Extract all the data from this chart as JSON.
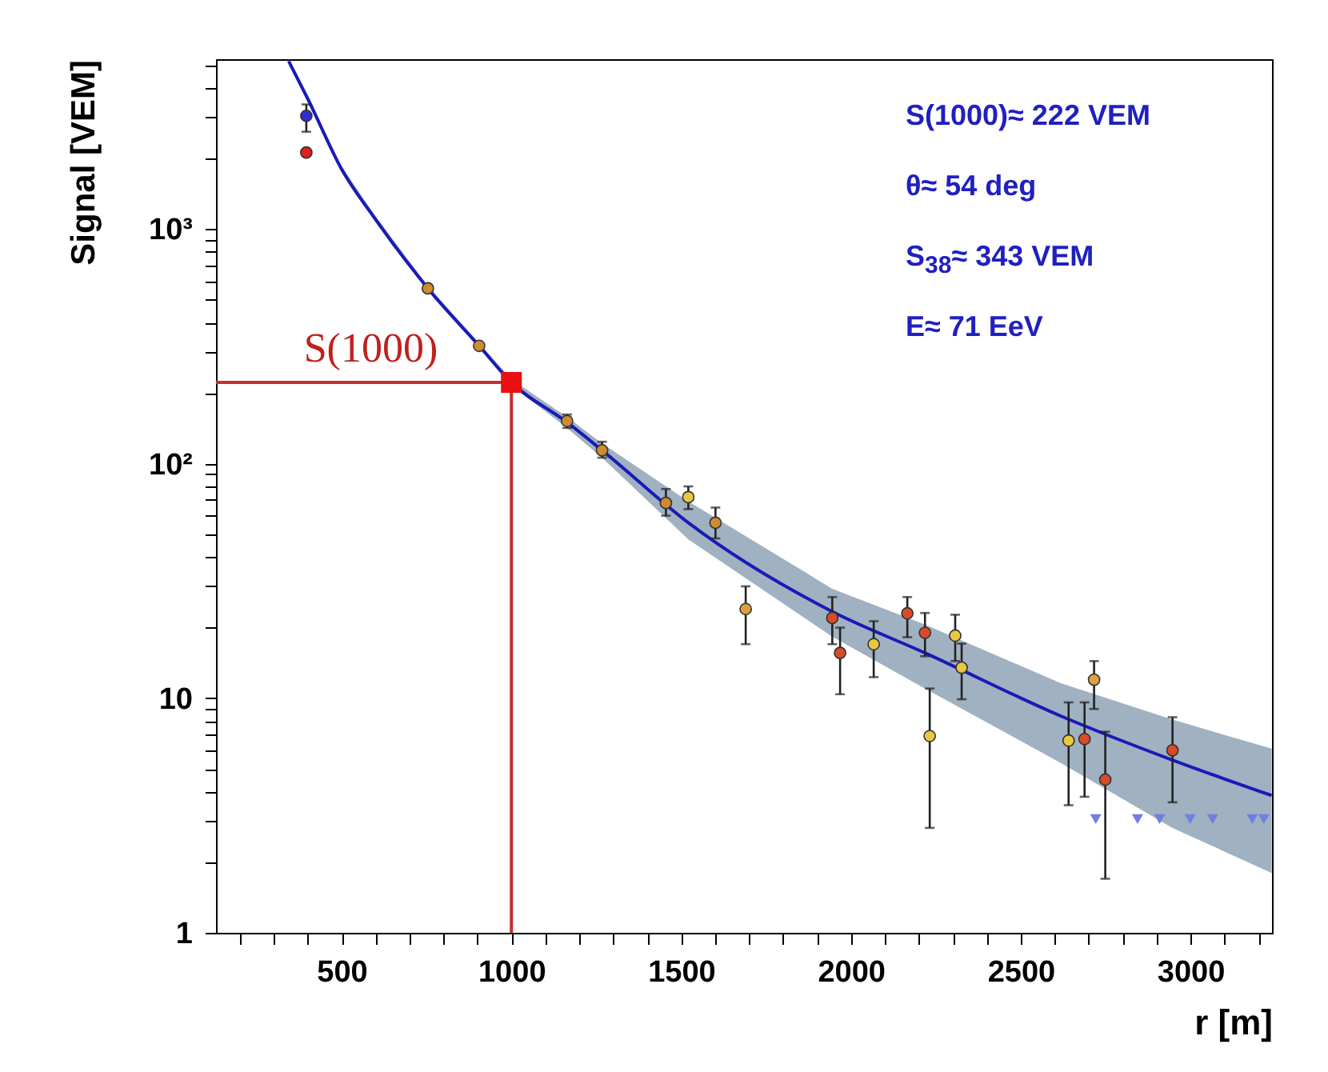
{
  "chart_data": {
    "type": "scatter",
    "xlabel": "r [m]",
    "ylabel": "Signal [VEM]",
    "log": "y",
    "marker": "circle",
    "xlim": [
      130,
      3240
    ],
    "ylim": [
      1,
      5300
    ],
    "xticks": [
      {
        "value": 200,
        "label": null
      },
      {
        "value": 300,
        "label": null
      },
      {
        "value": 400,
        "label": null
      },
      500,
      {
        "value": 600,
        "label": null
      },
      {
        "value": 700,
        "label": null
      },
      {
        "value": 800,
        "label": null
      },
      {
        "value": 900,
        "label": null
      },
      1000,
      {
        "value": 1100,
        "label": null
      },
      {
        "value": 1200,
        "label": null
      },
      {
        "value": 1300,
        "label": null
      },
      {
        "value": 1400,
        "label": null
      },
      1500,
      {
        "value": 1600,
        "label": null
      },
      {
        "value": 1700,
        "label": null
      },
      {
        "value": 1800,
        "label": null
      },
      {
        "value": 1900,
        "label": null
      },
      2000,
      {
        "value": 2100,
        "label": null
      },
      {
        "value": 2200,
        "label": null
      },
      {
        "value": 2300,
        "label": null
      },
      {
        "value": 2400,
        "label": null
      },
      2500,
      {
        "value": 2600,
        "label": null
      },
      {
        "value": 2700,
        "label": null
      },
      {
        "value": 2800,
        "label": null
      },
      {
        "value": 2900,
        "label": null
      },
      3000,
      {
        "value": 3100,
        "label": null
      },
      {
        "value": 3200,
        "label": null
      }
    ],
    "yticks": [
      1,
      {
        "value": 2,
        "label": null
      },
      {
        "value": 3,
        "label": null
      },
      {
        "value": 4,
        "label": null
      },
      {
        "value": 5,
        "label": null
      },
      {
        "value": 6,
        "label": null
      },
      {
        "value": 7,
        "label": null
      },
      {
        "value": 8,
        "label": null
      },
      {
        "value": 9,
        "label": null
      },
      10,
      {
        "value": 20,
        "label": null
      },
      {
        "value": 30,
        "label": null
      },
      {
        "value": 40,
        "label": null
      },
      {
        "value": 50,
        "label": null
      },
      {
        "value": 60,
        "label": null
      },
      {
        "value": 70,
        "label": null
      },
      {
        "value": 80,
        "label": null
      },
      {
        "value": 90,
        "label": null
      },
      {
        "value": 100,
        "label": "10²"
      },
      {
        "value": 200,
        "label": null
      },
      {
        "value": 300,
        "label": null
      },
      {
        "value": 400,
        "label": null
      },
      {
        "value": 500,
        "label": null
      },
      {
        "value": 600,
        "label": null
      },
      {
        "value": 700,
        "label": null
      },
      {
        "value": 800,
        "label": null
      },
      {
        "value": 900,
        "label": null
      },
      {
        "value": 1000,
        "label": "10³"
      },
      {
        "value": 2000,
        "label": null
      },
      {
        "value": 3000,
        "label": null
      },
      {
        "value": 4000,
        "label": null
      },
      {
        "value": 5000,
        "label": null
      }
    ],
    "annotations": [
      "S(1000)≈ 222 VEM",
      "θ≈ 54 deg",
      "S$_{38}$≈ 343 VEM",
      "E≈ 71 EeV"
    ],
    "series": [
      {
        "type": "line",
        "marker": "none",
        "color": "#1a1ab8",
        "x": [
          344,
          400,
          500,
          600,
          754,
          905,
          1000,
          1164,
          1267,
          1521,
          1945,
          2218,
          2618,
          2947,
          3239
        ],
        "values": [
          5200,
          3600,
          1800,
          1100,
          559,
          318,
          222,
          150,
          114,
          56,
          23.4,
          15.6,
          8.4,
          5.45,
          3.85
        ],
        "lower": [
          5100,
          3500,
          1750,
          1070,
          545,
          310,
          215,
          142,
          106,
          47.5,
          18.3,
          11,
          5.3,
          2.8,
          1.8
        ],
        "upper": [
          5300,
          3700,
          1850,
          1130,
          573,
          326,
          229,
          158,
          122,
          69,
          29.3,
          20.6,
          11.6,
          8.1,
          6.1
        ]
      },
      {
        "type": "line",
        "marker": "none",
        "color": "#c03030",
        "x": [
          130,
          1000,
          1000
        ],
        "values": [
          222,
          222,
          1
        ]
      },
      {
        "x": [
          754,
          905,
          1164,
          1267,
          1455,
          1521,
          1601,
          1690,
          1945,
          1968,
          2067,
          2166,
          2218,
          2232,
          2307,
          2326,
          2641,
          2688,
          2716,
          2749,
          2947
        ],
        "values": [
          559,
          318,
          152,
          114,
          68,
          72,
          56,
          24,
          22,
          15.6,
          17,
          23,
          19,
          6.9,
          18.5,
          13.5,
          6.6,
          6.7,
          12,
          4.5,
          6
        ],
        "colors": [
          "#d08a30",
          "#d08a30",
          "#d08a30",
          "#d08a30",
          "#d08a30",
          "#e8c840",
          "#d08a30",
          "#e0a040",
          "#d84a28",
          "#d84a28",
          "#e8c840",
          "#d84a28",
          "#d84a28",
          "#e8c840",
          "#e8c840",
          "#e8c840",
          "#e8c840",
          "#d84a28",
          "#e0a040",
          "#d84a28",
          "#d84a28"
        ],
        "errors": [
          null,
          null,
          [
            142,
            162
          ],
          [
            106,
            124
          ],
          [
            60,
            78
          ],
          [
            64,
            80
          ],
          [
            48,
            65
          ],
          [
            17,
            30
          ],
          [
            17,
            27
          ],
          [
            10.4,
            20
          ],
          [
            12.3,
            21.3
          ],
          [
            18.2,
            27
          ],
          [
            15.1,
            23.1
          ],
          [
            2.8,
            11
          ],
          [
            14.4,
            22.7
          ],
          [
            9.9,
            17.1
          ],
          [
            3.5,
            9.6
          ],
          [
            3.8,
            9.6
          ],
          [
            9,
            14.4
          ],
          [
            1.7,
            7.2
          ],
          [
            3.6,
            8.3
          ]
        ]
      },
      {
        "color": "#3030d0",
        "x": [
          396
        ],
        "values": [
          3040
        ],
        "errors": [
          [
            2600,
            3400
          ]
        ]
      },
      {
        "color": "#e02020",
        "x": [
          396
        ],
        "values": [
          2120
        ]
      },
      {
        "color": "#7080e0",
        "marker": "triangle",
        "x": [
          2721,
          2844,
          2909,
          2999,
          3065,
          3182,
          3216
        ],
        "values": [
          3.05,
          3.05,
          3.05,
          3.05,
          3.05,
          3.05,
          3.05
        ]
      },
      {
        "name": "S(1000)",
        "color": "#e81010",
        "marker": "square",
        "x": [
          1000
        ],
        "values": [
          222
        ]
      }
    ]
  }
}
